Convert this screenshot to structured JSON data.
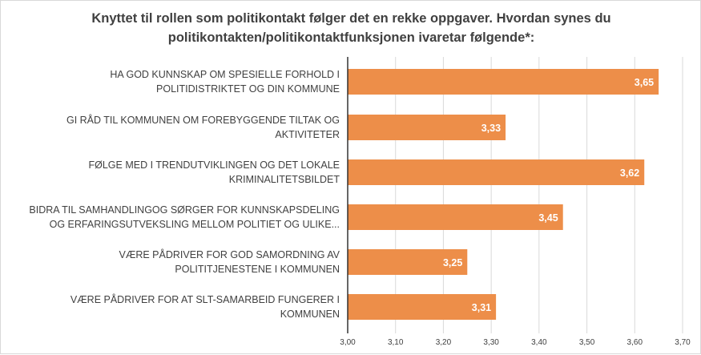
{
  "chart_data": {
    "type": "bar",
    "orientation": "horizontal",
    "title": [
      "Knyttet til rollen som politikontakt følger det en rekke oppgaver. Hvordan synes du",
      "politikontakten/politikontaktfunksjonen ivaretar følgende*:"
    ],
    "categories": [
      [
        "HA GOD KUNNSKAP OM SPESIELLE FORHOLD I",
        "POLITIDISTRIKTET OG DIN KOMMUNE"
      ],
      [
        "GI RÅD TIL KOMMUNEN OM FOREBYGGENDE TILTAK OG",
        "AKTIVITETER"
      ],
      [
        "FØLGE MED I TRENDUTVIKLINGEN OG DET LOKALE",
        "KRIMINALITETSBILDET"
      ],
      [
        "BIDRA TIL SAMHANDLINGOG SØRGER FOR KUNNSKAPSDELING",
        "OG ERFARINGSUTVEKSLING MELLOM POLITIET OG ULIKE..."
      ],
      [
        "VÆRE PÅDRIVER FOR GOD SAMORDNING AV",
        "POLITITJENESTENE I KOMMUNEN"
      ],
      [
        "VÆRE PÅDRIVER FOR AT SLT-SAMARBEID FUNGERER I",
        "KOMMUNEN"
      ]
    ],
    "values": [
      3.65,
      3.33,
      3.62,
      3.45,
      3.25,
      3.31
    ],
    "value_labels": [
      "3,65",
      "3,33",
      "3,62",
      "3,45",
      "3,25",
      "3,31"
    ],
    "xlim": [
      3.0,
      3.7
    ],
    "x_ticks": [
      "3,00",
      "3,10",
      "3,20",
      "3,30",
      "3,40",
      "3,50",
      "3,60",
      "3,70"
    ],
    "grid": true,
    "bar_color": "#ED8E49",
    "grid_color": "#D9D9D9",
    "text_color": "#404040"
  }
}
